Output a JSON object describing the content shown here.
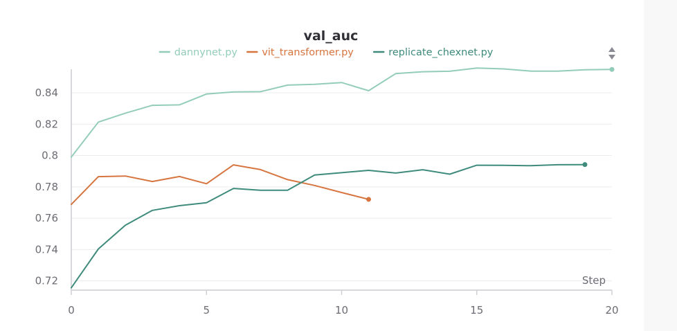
{
  "chart_data": {
    "type": "line",
    "title": "val_auc",
    "xlabel": "Step",
    "ylabel": "",
    "xlim": [
      0,
      20
    ],
    "ylim": [
      0.715,
      0.855
    ],
    "xticks": [
      0,
      5,
      10,
      15,
      20
    ],
    "xtick_labels": [
      "0",
      "5",
      "10",
      "15",
      "20"
    ],
    "yticks": [
      0.72,
      0.74,
      0.76,
      0.78,
      0.8,
      0.82,
      0.84
    ],
    "ytick_labels": [
      "0.72",
      "0.74",
      "0.76",
      "0.78",
      "0.8",
      "0.82",
      "0.84"
    ],
    "grid": true,
    "legend_position": "top-center",
    "series": [
      {
        "name": "dannynet.py",
        "color": "#93cdb9",
        "x": [
          0,
          1,
          2,
          3,
          4,
          5,
          6,
          7,
          8,
          9,
          10,
          11,
          12,
          13,
          14,
          15,
          16,
          17,
          18,
          19,
          20
        ],
        "values": [
          0.799,
          0.8213,
          0.827,
          0.832,
          0.8323,
          0.8392,
          0.8405,
          0.8407,
          0.8449,
          0.8454,
          0.8465,
          0.8413,
          0.8522,
          0.8534,
          0.8537,
          0.8558,
          0.8552,
          0.8538,
          0.8538,
          0.8547,
          0.8549
        ]
      },
      {
        "name": "vit_transformer.py",
        "color": "#d6753f",
        "x": [
          0,
          1,
          2,
          3,
          4,
          5,
          6,
          7,
          8,
          9,
          10,
          11
        ],
        "values": [
          0.7688,
          0.7865,
          0.7869,
          0.7834,
          0.7866,
          0.782,
          0.794,
          0.791,
          0.7846,
          0.7809,
          0.7764,
          0.772
        ]
      },
      {
        "name": "replicate_chexnet.py",
        "color": "#3e8b7c",
        "x": [
          0,
          1,
          2,
          3,
          4,
          5,
          6,
          7,
          8,
          9,
          10,
          11,
          12,
          13,
          14,
          15,
          16,
          17,
          18,
          19
        ],
        "values": [
          0.7156,
          0.7404,
          0.7555,
          0.765,
          0.768,
          0.7699,
          0.779,
          0.7778,
          0.7778,
          0.7875,
          0.789,
          0.7905,
          0.7888,
          0.7909,
          0.7881,
          0.7938,
          0.7937,
          0.7935,
          0.7941,
          0.7942
        ]
      }
    ]
  },
  "icons": {
    "menu": "sort-toggle-icon"
  }
}
